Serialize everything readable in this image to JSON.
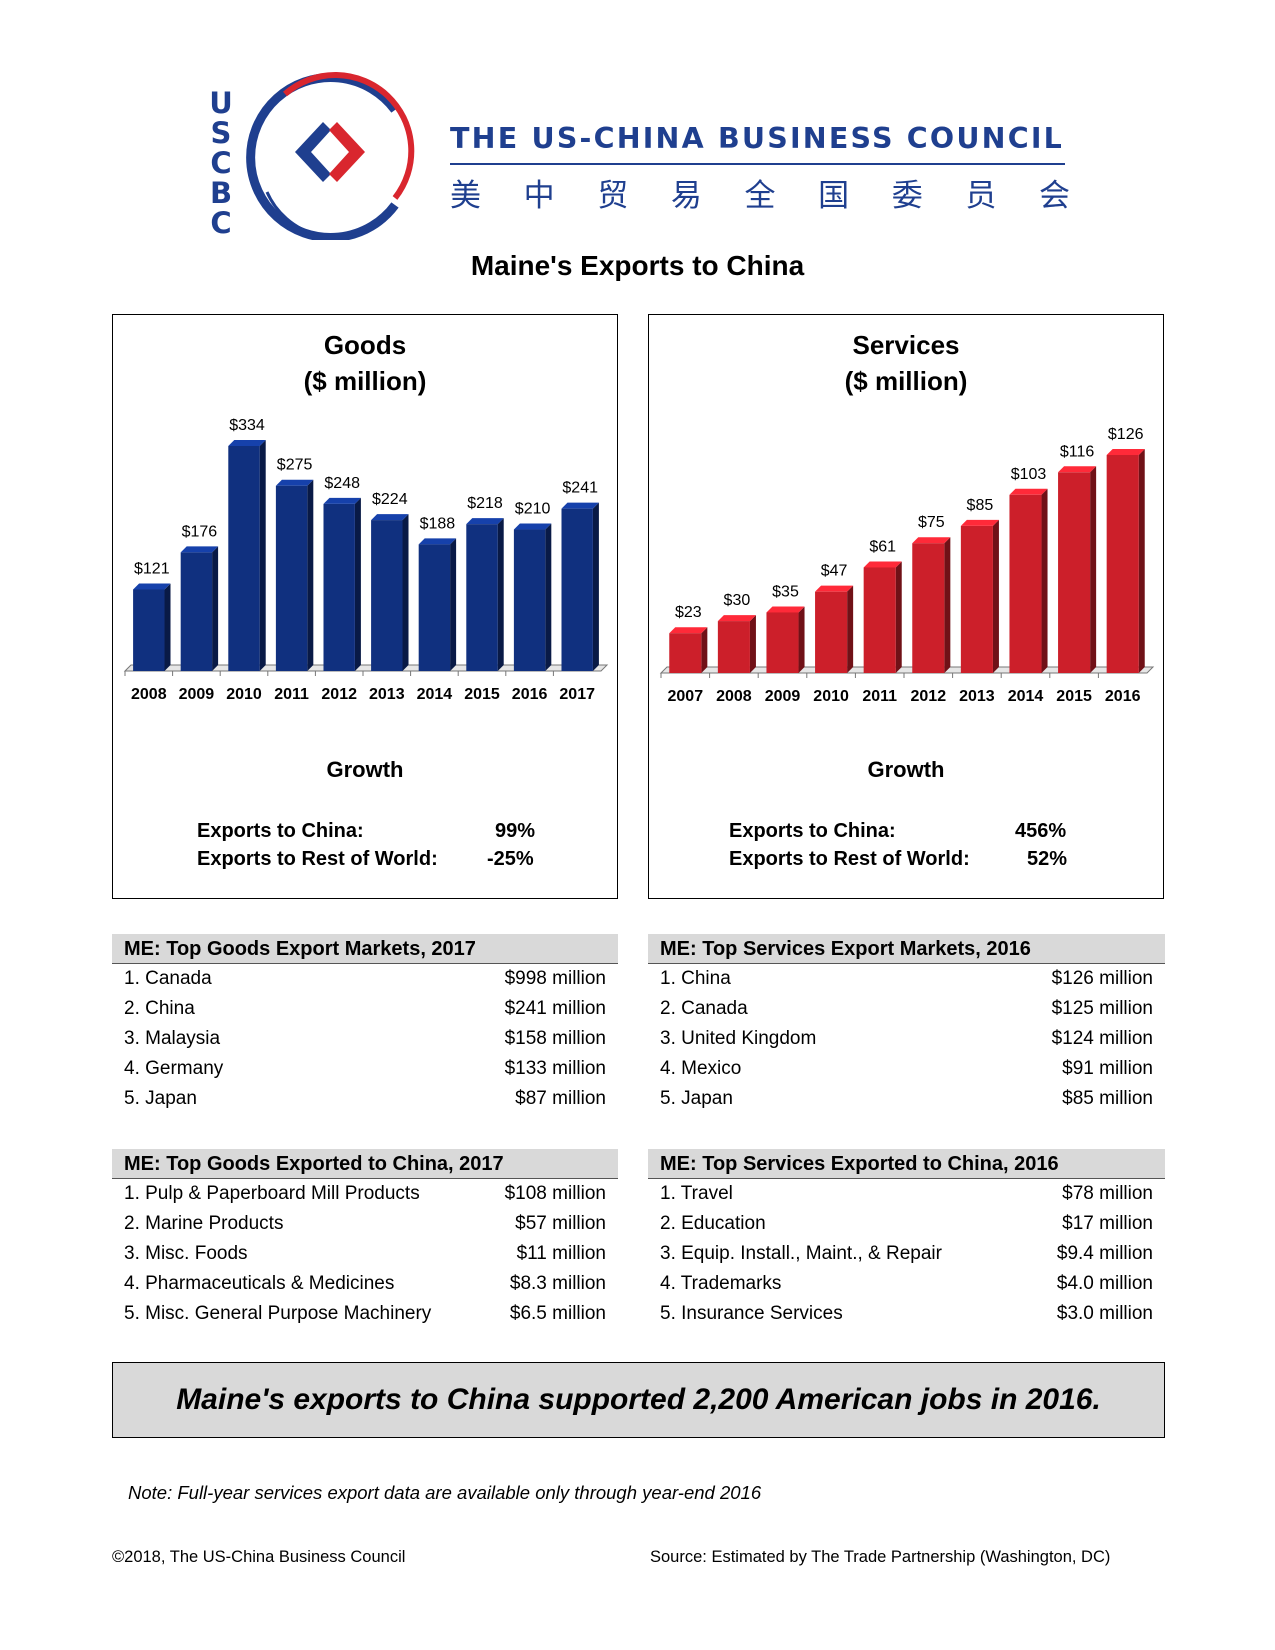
{
  "header": {
    "logo_letters": [
      "U",
      "S",
      "C",
      "B",
      "C"
    ],
    "org_name_en": "THE US-CHINA BUSINESS COUNCIL",
    "org_name_cn": [
      "美",
      "中",
      "贸",
      "易",
      "全",
      "国",
      "委",
      "员",
      "会"
    ],
    "colors": {
      "navy": "#1f3f8f",
      "red": "#d9262e"
    }
  },
  "page_title": "Maine's Exports to China",
  "chart_data": [
    {
      "type": "bar",
      "title": "Goods",
      "subtitle": "($ million)",
      "categories": [
        "2008",
        "2009",
        "2010",
        "2011",
        "2012",
        "2013",
        "2014",
        "2015",
        "2016",
        "2017"
      ],
      "values": [
        121,
        176,
        334,
        275,
        248,
        224,
        188,
        218,
        210,
        241
      ],
      "value_labels": [
        "$121",
        "$176",
        "$334",
        "$275",
        "$248",
        "$224",
        "$188",
        "$218",
        "$210",
        "$241"
      ],
      "ylim": [
        0,
        334
      ],
      "color": "#10307f",
      "grid": false,
      "style": "3d"
    },
    {
      "type": "bar",
      "title": "Services",
      "subtitle": "($ million)",
      "categories": [
        "2007",
        "2008",
        "2009",
        "2010",
        "2011",
        "2012",
        "2013",
        "2014",
        "2015",
        "2016"
      ],
      "values": [
        23,
        30,
        35,
        47,
        61,
        75,
        85,
        103,
        116,
        126
      ],
      "value_labels": [
        "$23",
        "$30",
        "$35",
        "$47",
        "$61",
        "$75",
        "$85",
        "$103",
        "$116",
        "$126"
      ],
      "ylim": [
        0,
        126
      ],
      "color": "#cc1f2a",
      "grid": false,
      "style": "3d"
    }
  ],
  "growth": {
    "title": "Growth",
    "goods": {
      "china_label": "Exports to China:",
      "china_value": "99%",
      "world_label": "Exports to Rest of World:",
      "world_value": "-25%"
    },
    "services": {
      "china_label": "Exports to China:",
      "china_value": "456%",
      "world_label": "Exports to Rest of World:",
      "world_value": "52%"
    }
  },
  "tables": {
    "goods_markets": {
      "title": "ME: Top Goods Export Markets, 2017",
      "rows": [
        {
          "label": "1. Canada",
          "value": "$998 million"
        },
        {
          "label": "2. China",
          "value": "$241 million"
        },
        {
          "label": "3. Malaysia",
          "value": "$158 million"
        },
        {
          "label": "4. Germany",
          "value": "$133 million"
        },
        {
          "label": "5. Japan",
          "value": "$87 million"
        }
      ]
    },
    "services_markets": {
      "title": "ME: Top Services Export Markets, 2016",
      "rows": [
        {
          "label": "1. China",
          "value": "$126 million"
        },
        {
          "label": "2. Canada",
          "value": "$125 million"
        },
        {
          "label": "3. United Kingdom",
          "value": "$124 million"
        },
        {
          "label": "4. Mexico",
          "value": "$91 million"
        },
        {
          "label": "5. Japan",
          "value": "$85 million"
        }
      ]
    },
    "goods_to_china": {
      "title": "ME: Top Goods Exported to China, 2017",
      "rows": [
        {
          "label": "1. Pulp & Paperboard Mill Products",
          "value": "$108 million"
        },
        {
          "label": "2. Marine Products",
          "value": "$57 million"
        },
        {
          "label": "3. Misc. Foods",
          "value": "$11 million"
        },
        {
          "label": "4. Pharmaceuticals & Medicines",
          "value": "$8.3 million"
        },
        {
          "label": "5. Misc. General Purpose Machinery",
          "value": "$6.5 million"
        }
      ]
    },
    "services_to_china": {
      "title": "ME: Top Services Exported to China, 2016",
      "rows": [
        {
          "label": "1. Travel",
          "value": "$78 million"
        },
        {
          "label": "2. Education",
          "value": "$17 million"
        },
        {
          "label": "3. Equip. Install., Maint., & Repair",
          "value": "$9.4 million"
        },
        {
          "label": "4. Trademarks",
          "value": "$4.0 million"
        },
        {
          "label": "5. Insurance Services",
          "value": "$3.0 million"
        }
      ]
    }
  },
  "banner": "Maine's exports to China supported 2,200 American jobs in 2016.",
  "note": "Note: Full-year services export data are available only through year-end 2016",
  "footer": {
    "copyright": "©2018, The US-China Business Council",
    "source": "Source: Estimated by The Trade Partnership (Washington, DC)"
  }
}
